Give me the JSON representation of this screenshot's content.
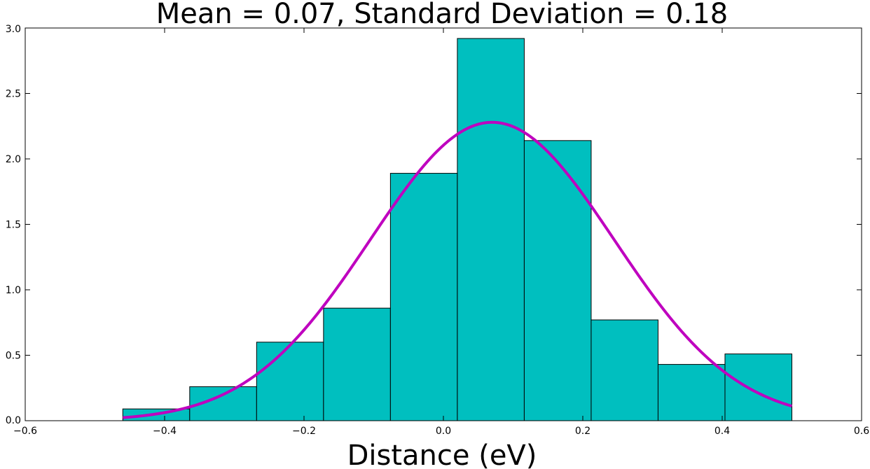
{
  "chart_data": {
    "type": "bar",
    "title": "Mean = 0.07,  Standard Deviation = 0.18",
    "xlabel": "Distance (eV)",
    "ylabel": "",
    "xlim": [
      -0.6,
      0.6
    ],
    "ylim": [
      0,
      3.0
    ],
    "xticks": [
      -0.6,
      -0.4,
      -0.2,
      0.0,
      0.2,
      0.4,
      0.6
    ],
    "yticks": [
      0.0,
      0.5,
      1.0,
      1.5,
      2.0,
      2.5,
      3.0
    ],
    "xtick_labels": [
      "−0.6",
      "−0.4",
      "−0.2",
      "0.0",
      "0.2",
      "0.4",
      "0.6"
    ],
    "ytick_labels": [
      "0.0",
      "0.5",
      "1.0",
      "1.5",
      "2.0",
      "2.5",
      "3.0"
    ],
    "bins": [
      {
        "x0": -0.46,
        "x1": -0.364,
        "value": 0.09
      },
      {
        "x0": -0.364,
        "x1": -0.268,
        "value": 0.26
      },
      {
        "x0": -0.268,
        "x1": -0.172,
        "value": 0.6
      },
      {
        "x0": -0.172,
        "x1": -0.076,
        "value": 0.86
      },
      {
        "x0": -0.076,
        "x1": 0.02,
        "value": 1.89
      },
      {
        "x0": 0.02,
        "x1": 0.116,
        "value": 2.92
      },
      {
        "x0": 0.116,
        "x1": 0.212,
        "value": 2.14
      },
      {
        "x0": 0.212,
        "x1": 0.308,
        "value": 0.77
      },
      {
        "x0": 0.308,
        "x1": 0.404,
        "value": 0.43
      },
      {
        "x0": 0.404,
        "x1": 0.5,
        "value": 0.51
      }
    ],
    "fit_curve": {
      "type": "normal_pdf",
      "mean": 0.07,
      "std": 0.175,
      "x_range": [
        -0.46,
        0.5
      ],
      "color": "#bf00bf"
    },
    "bar_color": "#00bfbf",
    "edge_color": "#000000",
    "grid": false
  }
}
